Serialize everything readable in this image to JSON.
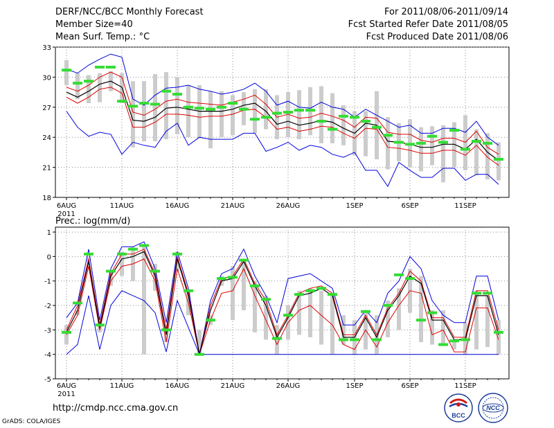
{
  "header": {
    "title": "DERF/NCC/BCC Monthly Forecast",
    "member": "Member Size=40",
    "variable": "Mean Surf. Temp.: °C",
    "period": "For 2011/08/06-2011/09/14",
    "started": "Fcst Started Refer Date 2011/08/05",
    "produced": "Fcst Produced Date 2011/08/06"
  },
  "footer": {
    "url": "http://cmdp.ncc.cma.gov.cn",
    "grads": "GrADS: COLA/IGES",
    "logo_bcc": "BCC",
    "logo_ncc": "NCC"
  },
  "colors": {
    "max_min": "#0000dd",
    "mean": "#000000",
    "spread": "#dd0000",
    "observed": "#33dd33",
    "range_bar": "#cccccc",
    "grid": "#888888"
  },
  "chart_data": [
    {
      "type": "line",
      "title": "Mean Surf. Temp.: °C",
      "xlabel": "",
      "ylabel": "°C",
      "ylim": [
        18,
        33
      ],
      "yticks": [
        18,
        21,
        24,
        27,
        30,
        33
      ],
      "x_tick_labels": [
        "6AUG",
        "11AUG",
        "16AUG",
        "21AUG",
        "26AUG",
        "1SEP",
        "6SEP",
        "11SEP"
      ],
      "x_tick_days": [
        0,
        5,
        10,
        15,
        20,
        26,
        31,
        36
      ],
      "year_label": "2011",
      "n_days": 40,
      "series": [
        {
          "name": "max",
          "values": [
            30.8,
            30.4,
            31.2,
            31.8,
            32.3,
            32.0,
            27.8,
            27.2,
            28.2,
            28.9,
            29.0,
            29.2,
            28.8,
            28.6,
            28.3,
            28.5,
            28.8,
            29.4,
            28.6,
            27.2,
            27.6,
            27.0,
            26.9,
            27.5,
            27.0,
            26.8,
            26.0,
            26.8,
            26.2,
            25.6,
            25.0,
            25.2,
            24.4,
            24.4,
            24.9,
            24.9,
            24.5,
            25.6,
            24.0,
            23.2
          ]
        },
        {
          "name": "upper",
          "values": [
            29.0,
            28.6,
            29.2,
            30.0,
            30.5,
            30.0,
            26.5,
            26.2,
            26.8,
            27.6,
            27.8,
            27.5,
            27.4,
            27.3,
            27.2,
            27.5,
            27.8,
            28.2,
            27.3,
            26.0,
            26.3,
            25.9,
            26.0,
            26.4,
            26.1,
            25.7,
            25.0,
            26.0,
            25.9,
            24.5,
            24.3,
            24.3,
            23.7,
            23.5,
            23.9,
            23.9,
            23.5,
            24.6,
            23.0,
            22.3
          ]
        },
        {
          "name": "mean",
          "values": [
            28.5,
            28.0,
            28.6,
            29.3,
            29.6,
            29.0,
            25.7,
            25.6,
            26.0,
            26.9,
            27.0,
            26.8,
            26.6,
            26.6,
            26.6,
            26.8,
            27.2,
            27.4,
            26.6,
            25.3,
            25.6,
            25.2,
            25.4,
            25.7,
            25.5,
            24.9,
            24.4,
            25.4,
            25.2,
            23.6,
            23.5,
            23.3,
            23.0,
            23.0,
            23.3,
            23.3,
            22.8,
            23.8,
            22.5,
            21.7
          ]
        },
        {
          "name": "lower",
          "values": [
            28.0,
            27.4,
            28.0,
            28.8,
            29.0,
            28.4,
            25.0,
            25.0,
            25.5,
            26.3,
            26.3,
            26.2,
            26.0,
            26.1,
            26.1,
            26.3,
            26.7,
            26.8,
            26.0,
            24.8,
            25.0,
            24.6,
            24.8,
            25.1,
            25.0,
            24.4,
            23.9,
            24.9,
            24.8,
            23.0,
            22.9,
            22.7,
            22.4,
            22.4,
            22.7,
            22.7,
            22.2,
            23.2,
            22.0,
            21.2
          ]
        },
        {
          "name": "min",
          "values": [
            26.6,
            25.0,
            24.1,
            24.5,
            24.3,
            22.3,
            23.5,
            23.2,
            23.0,
            24.6,
            25.4,
            23.2,
            24.0,
            23.8,
            23.8,
            23.8,
            24.4,
            24.4,
            22.6,
            23.0,
            23.5,
            22.7,
            23.2,
            23.0,
            22.3,
            22.0,
            22.5,
            20.7,
            20.7,
            19.1,
            21.5,
            20.7,
            20.0,
            20.0,
            20.9,
            20.9,
            19.7,
            20.3,
            20.3,
            19.3
          ]
        },
        {
          "name": "range_high",
          "values": [
            31.7,
            30.4,
            30.2,
            30.4,
            30.6,
            30.4,
            29.6,
            29.6,
            30.3,
            30.5,
            30.0,
            29.2,
            29.2,
            28.6,
            28.6,
            28.2,
            28.5,
            28.8,
            28.8,
            28.2,
            28.5,
            28.7,
            29.0,
            29.1,
            28.4,
            27.2,
            26.6,
            26.6,
            28.6,
            26.0,
            25.4,
            25.8,
            25.0,
            25.1,
            25.2,
            25.5,
            26.2,
            24.8,
            24.4,
            23.5
          ]
        },
        {
          "name": "range_low",
          "values": [
            29.2,
            27.8,
            27.4,
            27.5,
            28.6,
            27.4,
            23.0,
            23.6,
            23.6,
            23.8,
            24.3,
            24.0,
            23.9,
            22.9,
            24.0,
            24.2,
            25.2,
            24.4,
            24.8,
            23.8,
            24.0,
            23.8,
            24.2,
            23.4,
            23.4,
            23.2,
            22.2,
            22.1,
            21.8,
            20.8,
            21.6,
            21.0,
            20.6,
            21.2,
            19.5,
            21.0,
            20.7,
            20.2,
            19.8,
            19.7
          ]
        },
        {
          "name": "observed",
          "values": [
            30.7,
            29.4,
            29.6,
            31.0,
            31.0,
            27.6,
            27.1,
            27.4,
            27.3,
            28.6,
            28.3,
            27.0,
            26.9,
            26.8,
            27.0,
            27.4,
            26.8,
            25.8,
            26.0,
            26.4,
            26.5,
            26.7,
            26.7,
            25.6,
            24.8,
            26.1,
            26.0,
            25.6,
            25.0,
            24.2,
            23.5,
            23.3,
            23.4,
            24.1,
            23.5,
            24.7,
            22.8,
            23.6,
            23.4,
            21.8
          ]
        }
      ]
    },
    {
      "type": "line",
      "title": "Prec.: log(mm/d)",
      "xlabel": "",
      "ylabel": "log(mm/d)",
      "ylim": [
        -5,
        1.2
      ],
      "yticks": [
        -5,
        -4,
        -3,
        -2,
        -1,
        0,
        1
      ],
      "x_tick_labels": [
        "6AUG",
        "11AUG",
        "16AUG",
        "21AUG",
        "26AUG",
        "1SEP",
        "6SEP",
        "11SEP"
      ],
      "x_tick_days": [
        0,
        5,
        10,
        15,
        20,
        26,
        31,
        36
      ],
      "year_label": "2011",
      "n_days": 40,
      "series": [
        {
          "name": "max",
          "values": [
            -2.5,
            -1.9,
            0.3,
            -2.6,
            -0.5,
            0.4,
            0.4,
            0.6,
            -0.5,
            -2.7,
            0.2,
            -1.3,
            -4.0,
            -1.8,
            -0.7,
            -0.5,
            0.3,
            -0.8,
            -1.6,
            -2.7,
            -0.9,
            -0.8,
            -0.7,
            -1.0,
            -1.3,
            -2.8,
            -2.8,
            -2.2,
            -2.7,
            -1.5,
            -1.0,
            0.0,
            -0.5,
            -1.8,
            -2.4,
            -2.7,
            -2.7,
            -0.8,
            -0.8,
            -2.6
          ]
        },
        {
          "name": "upper",
          "values": [
            -3.0,
            -2.0,
            -0.1,
            -2.8,
            -0.7,
            0.1,
            0.1,
            0.3,
            -0.7,
            -3.0,
            0.0,
            -1.5,
            -4.0,
            -2.0,
            -0.9,
            -0.8,
            -0.1,
            -1.1,
            -1.8,
            -3.2,
            -2.4,
            -1.5,
            -1.3,
            -1.2,
            -1.5,
            -3.2,
            -3.2,
            -2.4,
            -3.2,
            -2.1,
            -1.5,
            -0.6,
            -1.0,
            -2.5,
            -2.5,
            -3.3,
            -3.3,
            -1.4,
            -1.4,
            -3.0
          ]
        },
        {
          "name": "mean",
          "values": [
            -3.1,
            -2.2,
            -0.2,
            -2.9,
            -0.8,
            -0.1,
            0.0,
            0.2,
            -0.8,
            -3.2,
            -0.1,
            -1.6,
            -4.0,
            -2.2,
            -1.0,
            -0.9,
            -0.2,
            -1.2,
            -2.0,
            -3.3,
            -2.5,
            -1.6,
            -1.5,
            -1.3,
            -1.6,
            -3.3,
            -3.3,
            -2.5,
            -3.3,
            -2.2,
            -1.6,
            -0.8,
            -1.1,
            -2.6,
            -2.6,
            -3.4,
            -3.4,
            -1.6,
            -1.6,
            -3.2
          ]
        },
        {
          "name": "lower",
          "values": [
            -3.2,
            -2.4,
            -0.4,
            -3.0,
            -1.0,
            -0.4,
            -0.3,
            -0.1,
            -1.0,
            -3.5,
            -0.5,
            -1.9,
            -4.0,
            -2.6,
            -1.5,
            -1.4,
            -0.5,
            -1.6,
            -2.6,
            -3.6,
            -2.7,
            -2.2,
            -2.0,
            -2.4,
            -2.8,
            -3.6,
            -3.8,
            -3.0,
            -3.7,
            -2.7,
            -2.0,
            -1.4,
            -1.5,
            -3.2,
            -3.0,
            -3.9,
            -3.9,
            -2.1,
            -2.1,
            -3.4
          ]
        },
        {
          "name": "min",
          "values": [
            -4.0,
            -3.6,
            -1.6,
            -3.8,
            -2.0,
            -1.4,
            -1.6,
            -1.8,
            -2.3,
            -3.9,
            -1.8,
            -2.9,
            -4.0,
            -4.0,
            -4.0,
            -4.0,
            -4.0,
            -4.0,
            -4.0,
            -4.0,
            -4.0,
            -4.0,
            -4.0,
            -4.0,
            -4.0,
            -4.0,
            -4.0,
            -4.0,
            -4.0,
            -4.0,
            -4.0,
            -4.0,
            -4.0,
            -4.0,
            -4.0,
            -4.0,
            -4.0,
            -4.0,
            -4.0,
            -4.0
          ]
        },
        {
          "name": "range_high",
          "values": [
            -2.8,
            -2.4,
            0.0,
            -2.6,
            -0.6,
            0.2,
            0.4,
            0.5,
            -0.3,
            -2.8,
            0.2,
            -1.4,
            -3.0,
            -2.4,
            -0.8,
            -0.4,
            -0.1,
            -1.0,
            -1.6,
            -2.8,
            -2.0,
            -1.4,
            -1.3,
            -1.4,
            -1.5,
            -2.4,
            -2.6,
            -2.2,
            -2.4,
            -1.8,
            -1.3,
            -0.5,
            -0.8,
            -2.2,
            -2.2,
            -3.4,
            -2.7,
            -1.4,
            -1.6,
            -2.6
          ]
        },
        {
          "name": "range_low",
          "values": [
            -3.6,
            -2.2,
            -0.2,
            -3.1,
            -1.2,
            -0.8,
            -1.0,
            -4.0,
            -1.4,
            -3.5,
            -0.6,
            -2.4,
            -4.0,
            -2.8,
            -1.2,
            -2.6,
            -2.2,
            -3.1,
            -3.4,
            -4.0,
            -3.4,
            -3.2,
            -3.3,
            -3.6,
            -4.0,
            -3.6,
            -4.0,
            -3.8,
            -4.0,
            -3.3,
            -3.0,
            -2.3,
            -3.5,
            -3.6,
            -3.6,
            -3.8,
            -4.0,
            -3.8,
            -3.7,
            -4.0
          ]
        },
        {
          "name": "observed",
          "values": [
            -3.1,
            -1.9,
            0.1,
            -2.8,
            -0.6,
            0.1,
            0.3,
            0.45,
            -0.6,
            -3.0,
            0.1,
            -1.4,
            -4.0,
            -2.6,
            -0.9,
            -0.85,
            -0.15,
            -1.2,
            -1.75,
            -3.35,
            -2.4,
            -1.55,
            -1.4,
            -1.3,
            -1.55,
            -3.4,
            -3.4,
            -2.25,
            -3.4,
            -2.0,
            -0.75,
            -0.9,
            -2.6,
            -2.3,
            -3.6,
            -3.45,
            -3.4,
            -1.5,
            -1.5,
            -3.1
          ]
        }
      ]
    }
  ]
}
